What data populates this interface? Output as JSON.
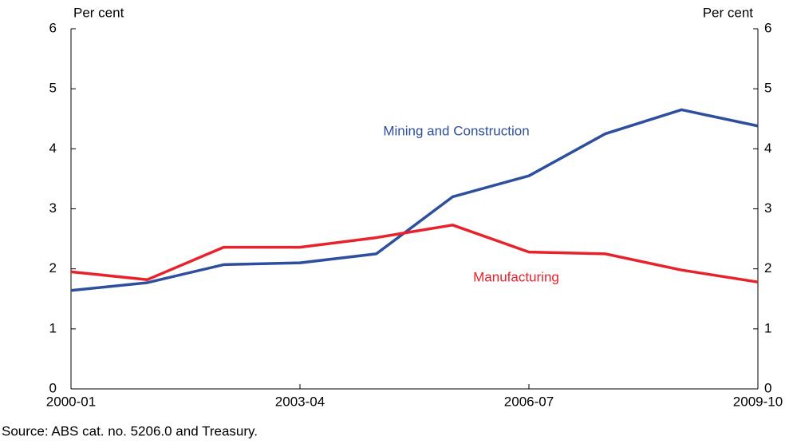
{
  "chart_data": {
    "type": "line",
    "y_label": "Per cent",
    "y2_label": "Per cent",
    "source": "Source: ABS cat. no. 5206.0 and Treasury.",
    "categories": [
      "2000-01",
      null,
      null,
      "2003-04",
      null,
      null,
      "2006-07",
      null,
      null,
      "2009-10"
    ],
    "series": [
      {
        "name": "Mining and Construction",
        "color": "#2e4f9e",
        "values": [
          1.64,
          1.77,
          2.07,
          2.1,
          2.25,
          3.2,
          3.55,
          4.25,
          4.65,
          4.38
        ]
      },
      {
        "name": "Manufacturing",
        "color": "#e8222b",
        "values": [
          1.95,
          1.82,
          2.36,
          2.36,
          2.52,
          2.73,
          2.28,
          2.25,
          1.98,
          1.78
        ]
      }
    ],
    "ylim": [
      0,
      6
    ],
    "yticks": [
      0,
      1,
      2,
      3,
      4,
      5,
      6
    ],
    "y2lim": [
      0,
      6
    ],
    "y2ticks": [
      0,
      1,
      2,
      3,
      4,
      5,
      6
    ]
  }
}
